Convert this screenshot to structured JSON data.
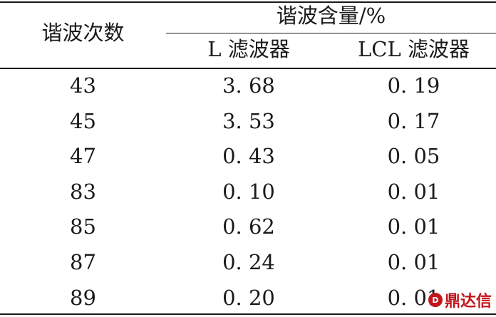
{
  "table": {
    "header": {
      "order": "谐波次数",
      "content_group": "谐波含量/%",
      "col_l": "L 滤波器",
      "col_lcl": "LCL 滤波器"
    },
    "rows": [
      {
        "order": "43",
        "l": "3. 68",
        "lcl": "0. 19"
      },
      {
        "order": "45",
        "l": "3. 53",
        "lcl": "0. 17"
      },
      {
        "order": "47",
        "l": "0. 43",
        "lcl": "0. 05"
      },
      {
        "order": "83",
        "l": "0. 10",
        "lcl": "0. 01"
      },
      {
        "order": "85",
        "l": "0. 62",
        "lcl": "0. 01"
      },
      {
        "order": "87",
        "l": "0. 24",
        "lcl": "0. 01"
      },
      {
        "order": "89",
        "l": "0. 20",
        "lcl": "0. 01"
      }
    ]
  },
  "watermark": {
    "text": "鼎达信",
    "logo": "D"
  }
}
